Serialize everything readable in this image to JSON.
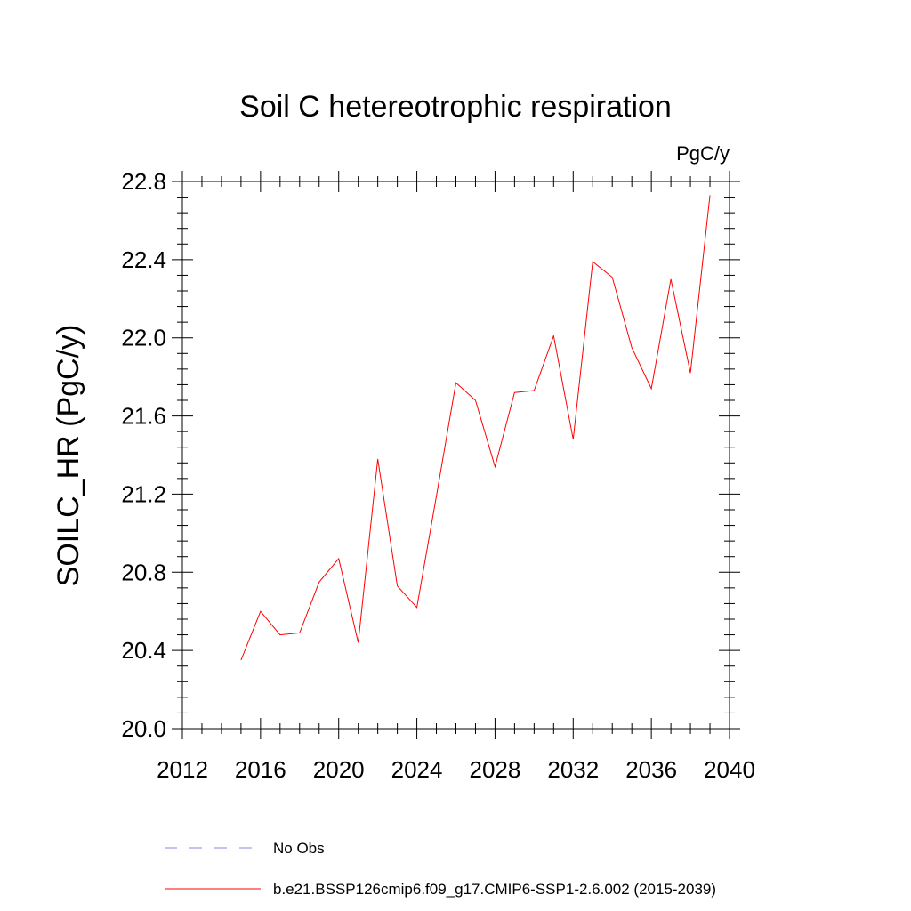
{
  "chart_data": {
    "type": "line",
    "title": "Soil C hetereotrophic respiration",
    "units_label": "PgC/y",
    "ylabel": "SOILC_HR  (PgC/y)",
    "xlabel": "",
    "xlim": [
      2012,
      2040
    ],
    "ylim": [
      20.0,
      22.8
    ],
    "x_ticks": [
      2012,
      2016,
      2020,
      2024,
      2028,
      2032,
      2036,
      2040
    ],
    "x_tick_labels": [
      "2012",
      "2016",
      "2020",
      "2024",
      "2028",
      "2032",
      "2036",
      "2040"
    ],
    "y_ticks": [
      20.0,
      20.4,
      20.8,
      21.2,
      21.6,
      22.0,
      22.4,
      22.8
    ],
    "y_tick_labels": [
      "20.0",
      "20.4",
      "20.8",
      "21.2",
      "21.6",
      "22.0",
      "22.4",
      "22.8"
    ],
    "grid": false,
    "legend_position": "bottom",
    "series": [
      {
        "name": "b.e21.BSSP126cmip6.f09_g17.CMIP6-SSP1-2.6.002 (2015-2039)",
        "color": "#ff0000",
        "x": [
          2015,
          2016,
          2017,
          2018,
          2019,
          2020,
          2021,
          2022,
          2023,
          2024,
          2025,
          2026,
          2027,
          2028,
          2029,
          2030,
          2031,
          2032,
          2033,
          2034,
          2035,
          2036,
          2037,
          2038,
          2039
        ],
        "values": [
          20.35,
          20.6,
          20.48,
          20.49,
          20.75,
          20.87,
          20.44,
          21.38,
          20.73,
          20.62,
          21.19,
          21.77,
          21.68,
          21.34,
          21.72,
          21.73,
          22.01,
          21.48,
          22.39,
          22.31,
          21.95,
          21.74,
          22.3,
          21.82,
          22.73
        ]
      }
    ],
    "legend": [
      {
        "label": "No Obs",
        "style": "dashed",
        "color": "#8a8ae6"
      },
      {
        "label": "b.e21.BSSP126cmip6.f09_g17.CMIP6-SSP1-2.6.002 (2015-2039)",
        "style": "solid",
        "color": "#ff0000"
      }
    ]
  }
}
